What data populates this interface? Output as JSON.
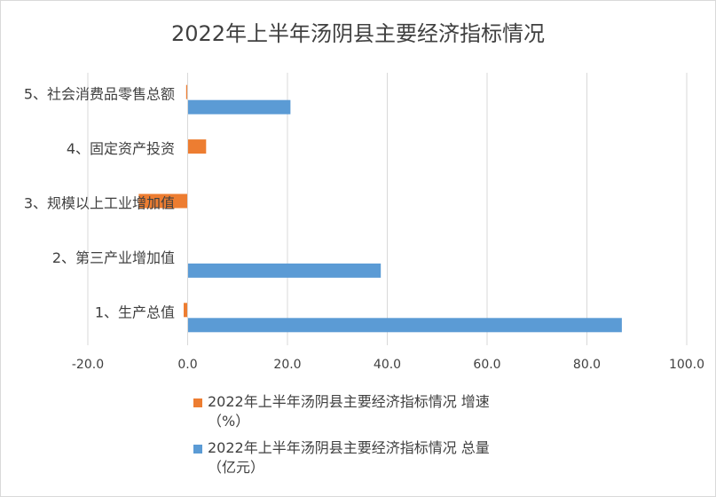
{
  "chart_data": {
    "type": "bar",
    "orientation": "horizontal",
    "title": "2022年上半年汤阴县主要经济指标情况",
    "categories": [
      "5、社会消费品零售总额",
      "4、固定资产投资",
      "3、规模以上工业增加值",
      "2、第三产业增加值",
      "1、生产总值"
    ],
    "series": [
      {
        "name": "2022年上半年汤阴县主要经济指标情况 增速（%）",
        "name_lines": [
          "2022年上半年汤阴县主要经济指标情况 增速",
          "（%）"
        ],
        "color": "#ed7d31",
        "values": [
          -0.3,
          3.7,
          -9.8,
          null,
          -0.8
        ]
      },
      {
        "name": "2022年上半年汤阴县主要经济指标情况 总量（亿元）",
        "name_lines": [
          "2022年上半年汤阴县主要经济指标情况 总量",
          "（亿元）"
        ],
        "color": "#5b9bd5",
        "values": [
          20.6,
          null,
          null,
          38.7,
          87.0
        ]
      }
    ],
    "x_ticks": [
      "-20.0",
      "0.0",
      "20.0",
      "40.0",
      "60.0",
      "80.0",
      "100.0"
    ],
    "xlim": [
      -20,
      100
    ],
    "grid": true,
    "legend_position": "bottom"
  }
}
